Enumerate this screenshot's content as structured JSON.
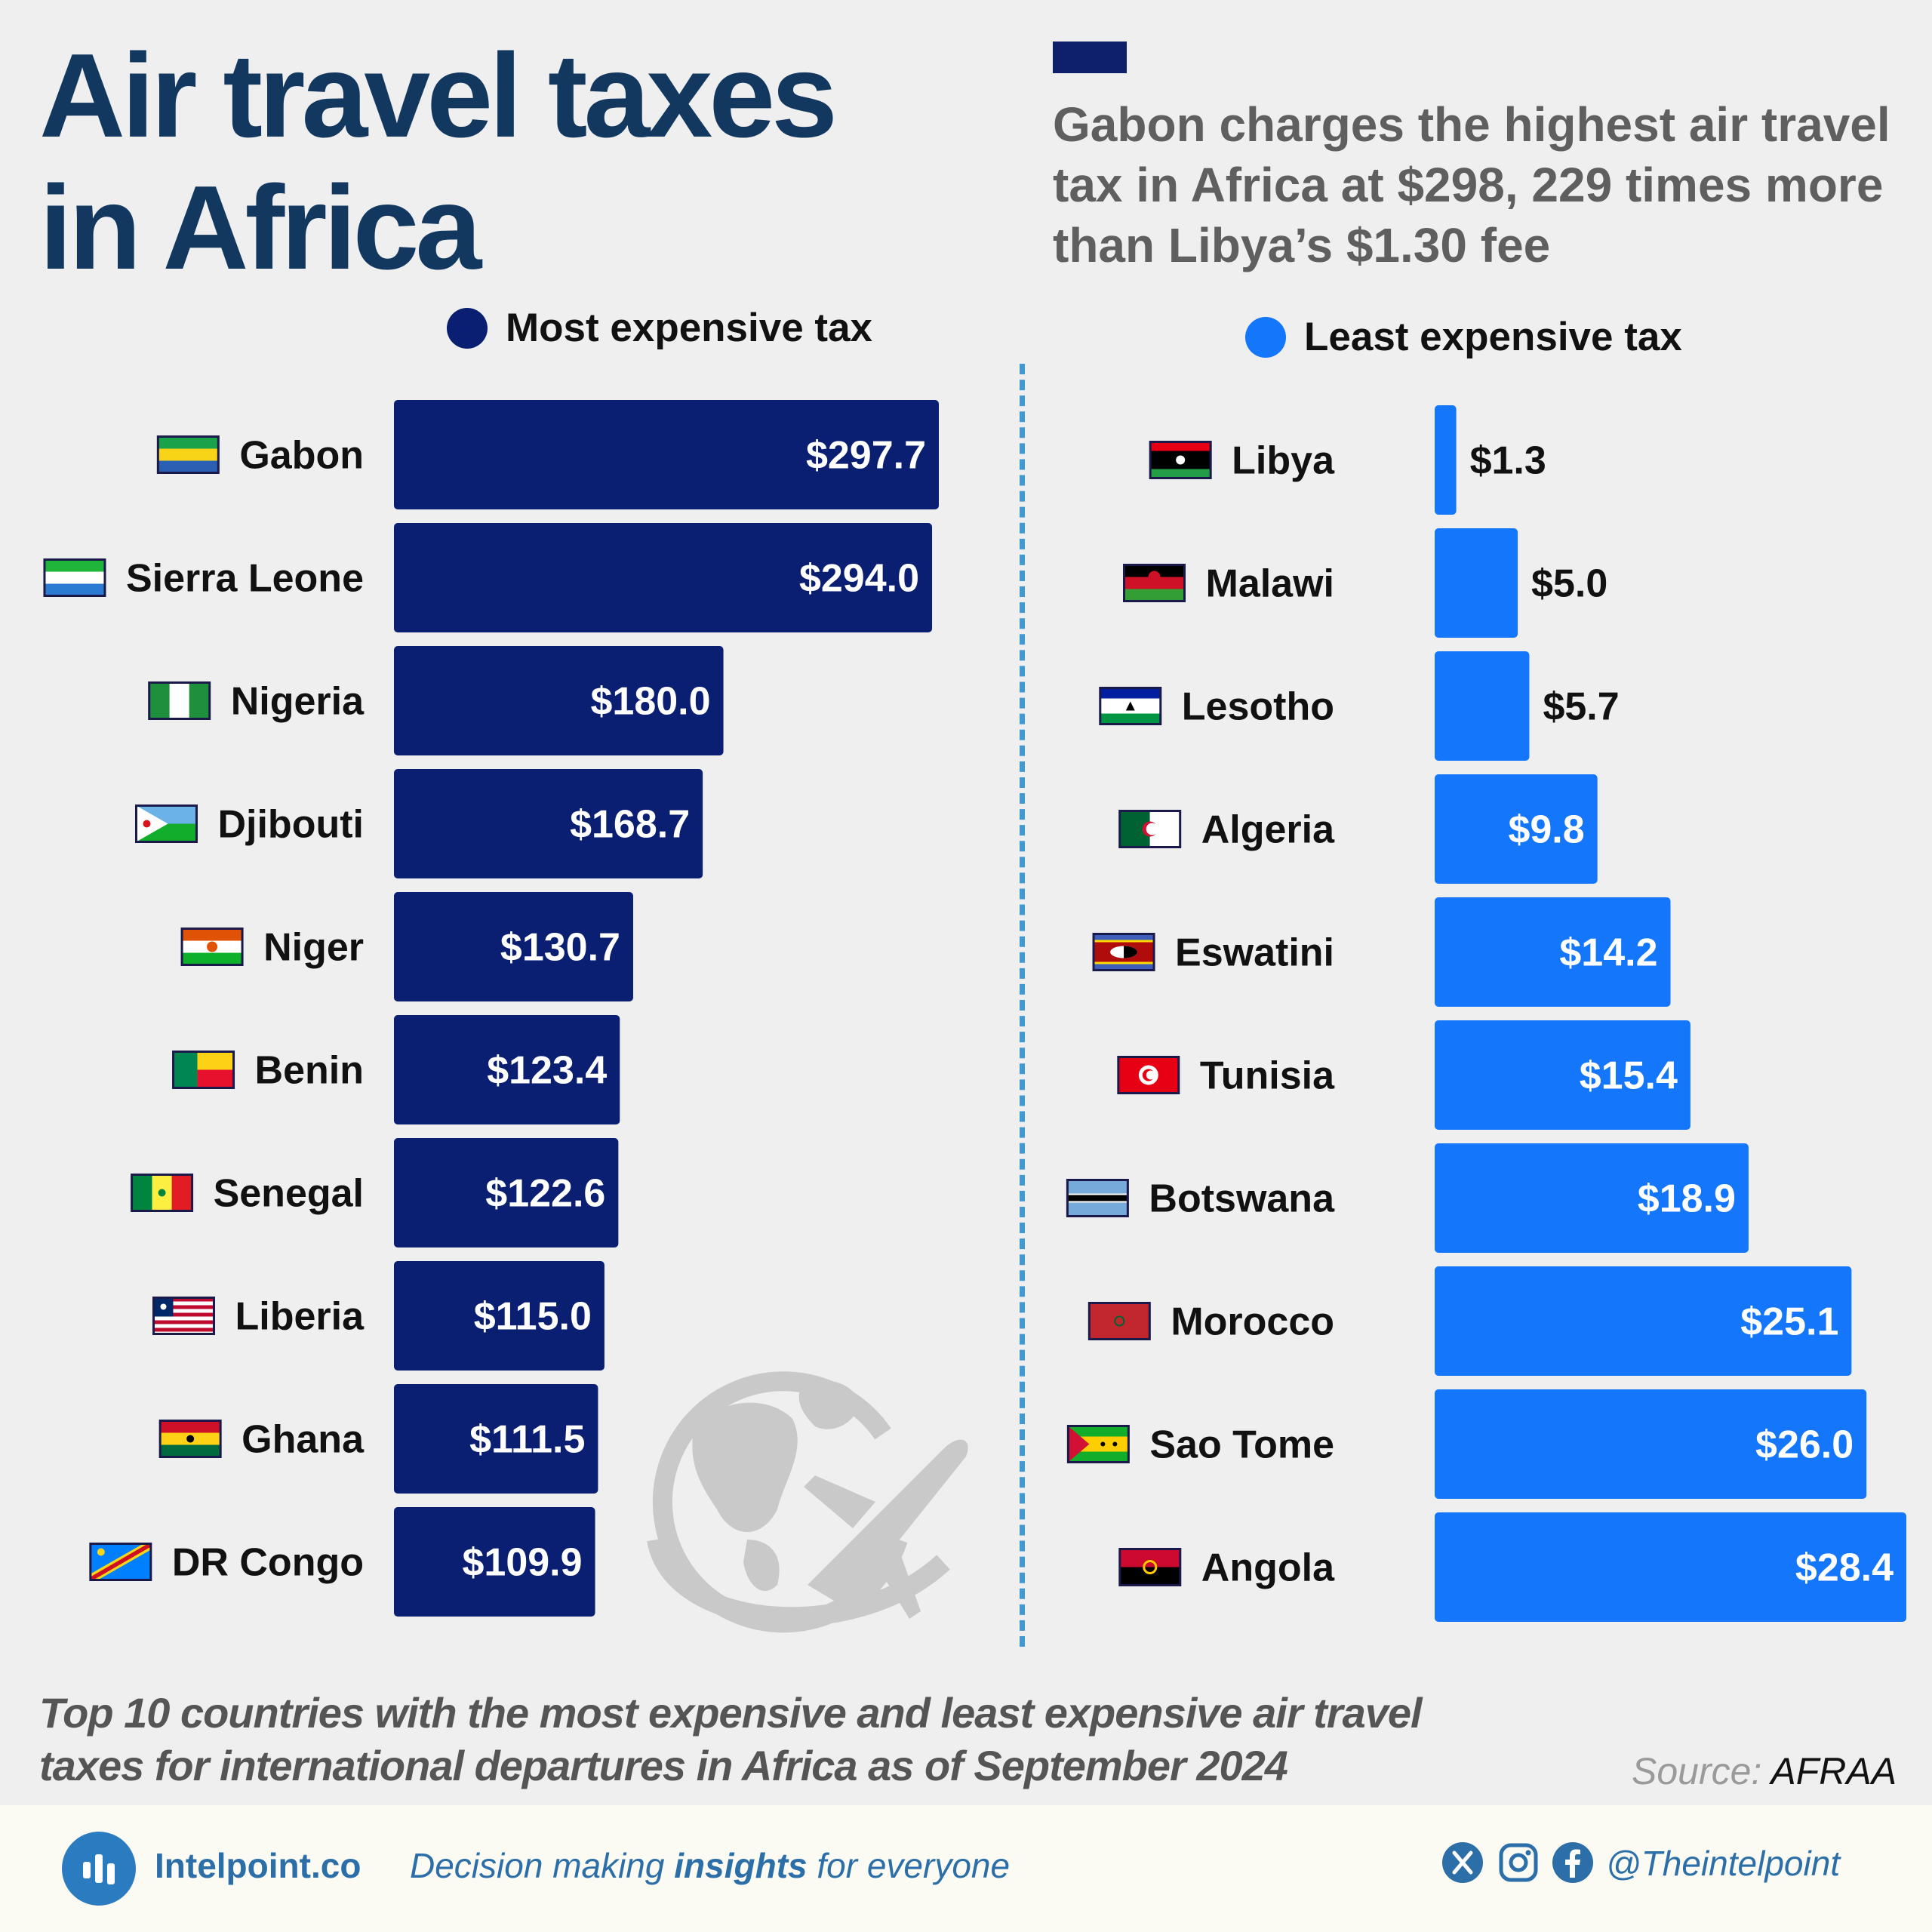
{
  "title_line1": "Air travel taxes",
  "title_line2": "in Africa",
  "subtitle": "Gabon charges the highest air travel tax in Africa at $298, 229 times more than Libya’s $1.30 fee",
  "colors": {
    "most": "#0b1f72",
    "least": "#1476fb",
    "title": "#12385f",
    "divider": "#3f9ad3"
  },
  "chart_data": [
    {
      "type": "bar",
      "orientation": "horizontal",
      "legend": "Most expensive tax",
      "categories": [
        "Gabon",
        "Sierra Leone",
        "Nigeria",
        "Djibouti",
        "Niger",
        "Benin",
        "Senegal",
        "Liberia",
        "Ghana",
        "DR Congo"
      ],
      "values": [
        297.7,
        294.0,
        180.0,
        168.7,
        130.7,
        123.4,
        122.6,
        115.0,
        111.5,
        109.9
      ],
      "labels": [
        "$297.7",
        "$294.0",
        "$180.0",
        "$168.7",
        "$130.7",
        "$123.4",
        "$122.6",
        "$115.0",
        "$111.5",
        "$109.9"
      ],
      "xlim": [
        0,
        297.7
      ]
    },
    {
      "type": "bar",
      "orientation": "horizontal",
      "legend": "Least expensive tax",
      "categories": [
        "Libya",
        "Malawi",
        "Lesotho",
        "Algeria",
        "Eswatini",
        "Tunisia",
        "Botswana",
        "Morocco",
        "Sao Tome",
        "Angola"
      ],
      "values": [
        1.3,
        5.0,
        5.7,
        9.8,
        14.2,
        15.4,
        18.9,
        25.1,
        26.0,
        28.4
      ],
      "labels": [
        "$1.3",
        "$5.0",
        "$5.7",
        "$9.8",
        "$14.2",
        "$15.4",
        "$18.9",
        "$25.1",
        "$26.0",
        "$28.4"
      ],
      "xlim": [
        0,
        28.4
      ]
    }
  ],
  "caption": "Top 10 countries with the most expensive and least expensive air travel taxes for international departures in Africa as of September 2024",
  "source_label": "Source:",
  "source_name": "AFRAA",
  "footer": {
    "brand": "Intelpoint.co",
    "tagline_pre": "Decision making ",
    "tagline_bold": "insights",
    "tagline_post": " for everyone",
    "handle": "@Theintelpoint"
  }
}
